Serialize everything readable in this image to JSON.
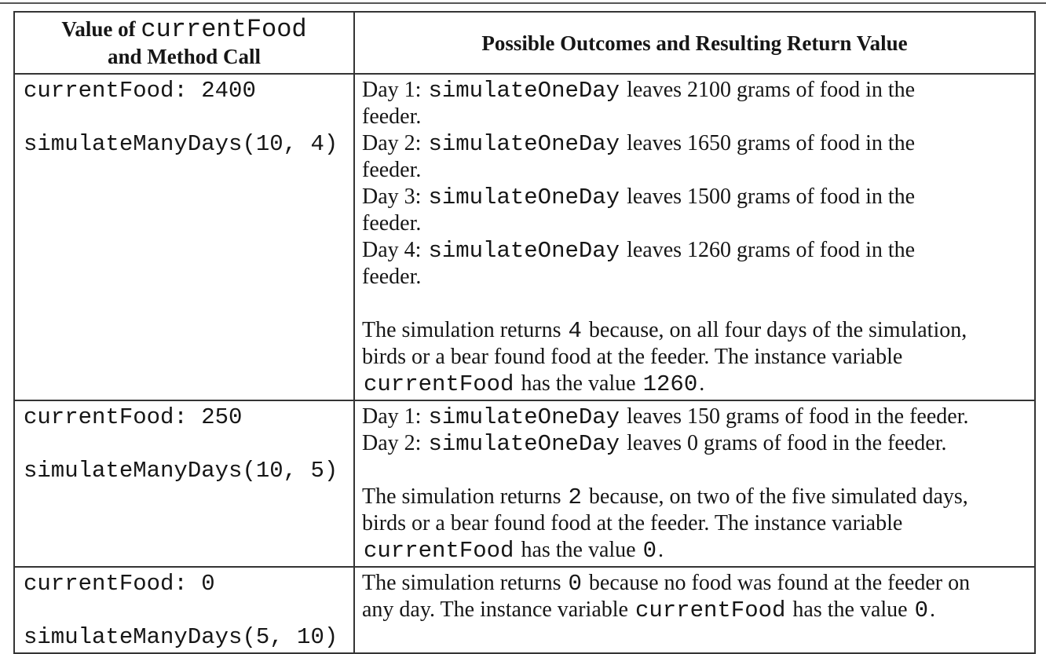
{
  "table": {
    "header": {
      "col1": {
        "prefix": "Value of ",
        "code": "currentFood",
        "line2": "and Method Call"
      },
      "col2": "Possible Outcomes and Resulting Return Value"
    },
    "rows": [
      {
        "left_lines": [
          [
            {
              "t": "currentFood: 2400",
              "m": true
            }
          ],
          [],
          [
            {
              "t": "simulateManyDays(10, 4)",
              "m": true
            }
          ]
        ],
        "right_lines": [
          [
            {
              "t": "Day 1: "
            },
            {
              "t": "simulateOneDay",
              "m": true
            },
            {
              "t": " leaves 2100 grams of food in the"
            }
          ],
          [
            {
              "t": "feeder."
            }
          ],
          [
            {
              "t": "Day 2: "
            },
            {
              "t": "simulateOneDay",
              "m": true
            },
            {
              "t": " leaves 1650 grams of food in the"
            }
          ],
          [
            {
              "t": "feeder."
            }
          ],
          [
            {
              "t": "Day 3: "
            },
            {
              "t": "simulateOneDay",
              "m": true
            },
            {
              "t": " leaves 1500 grams of food in the"
            }
          ],
          [
            {
              "t": "feeder."
            }
          ],
          [
            {
              "t": "Day 4: "
            },
            {
              "t": "simulateOneDay",
              "m": true
            },
            {
              "t": " leaves 1260 grams of food in the"
            }
          ],
          [
            {
              "t": "feeder."
            }
          ],
          [],
          [
            {
              "t": "The simulation returns "
            },
            {
              "t": "4",
              "m": true
            },
            {
              "t": " because, on all four days of the simulation,"
            }
          ],
          [
            {
              "t": "birds or a bear found food at the feeder. The instance variable"
            }
          ],
          [
            {
              "t": "currentFood",
              "m": true
            },
            {
              "t": " has the value "
            },
            {
              "t": "1260",
              "m": true
            },
            {
              "t": "."
            }
          ]
        ]
      },
      {
        "left_lines": [
          [
            {
              "t": "currentFood: 250",
              "m": true
            }
          ],
          [],
          [
            {
              "t": "simulateManyDays(10, 5)",
              "m": true
            }
          ]
        ],
        "right_lines": [
          [
            {
              "t": "Day 1: "
            },
            {
              "t": "simulateOneDay",
              "m": true
            },
            {
              "t": " leaves 150 grams of food in the feeder."
            }
          ],
          [
            {
              "t": "Day 2: "
            },
            {
              "t": "simulateOneDay",
              "m": true
            },
            {
              "t": " leaves 0 grams of food in the feeder."
            }
          ],
          [],
          [
            {
              "t": "The simulation returns "
            },
            {
              "t": "2",
              "m": true
            },
            {
              "t": " because, on two of the five simulated days,"
            }
          ],
          [
            {
              "t": "birds or a bear found food at the feeder. The instance variable"
            }
          ],
          [
            {
              "t": "currentFood",
              "m": true
            },
            {
              "t": " has the value "
            },
            {
              "t": "0",
              "m": true
            },
            {
              "t": "."
            }
          ]
        ]
      },
      {
        "left_lines": [
          [
            {
              "t": "currentFood: 0",
              "m": true
            }
          ],
          [],
          [
            {
              "t": "simulateManyDays(5, 10)",
              "m": true
            }
          ]
        ],
        "right_lines": [
          [
            {
              "t": "The simulation returns "
            },
            {
              "t": "0",
              "m": true
            },
            {
              "t": " because no food was found at the feeder on"
            }
          ],
          [
            {
              "t": "any day. The instance variable "
            },
            {
              "t": "currentFood",
              "m": true
            },
            {
              "t": " has the value "
            },
            {
              "t": "0",
              "m": true
            },
            {
              "t": "."
            }
          ]
        ]
      }
    ]
  }
}
